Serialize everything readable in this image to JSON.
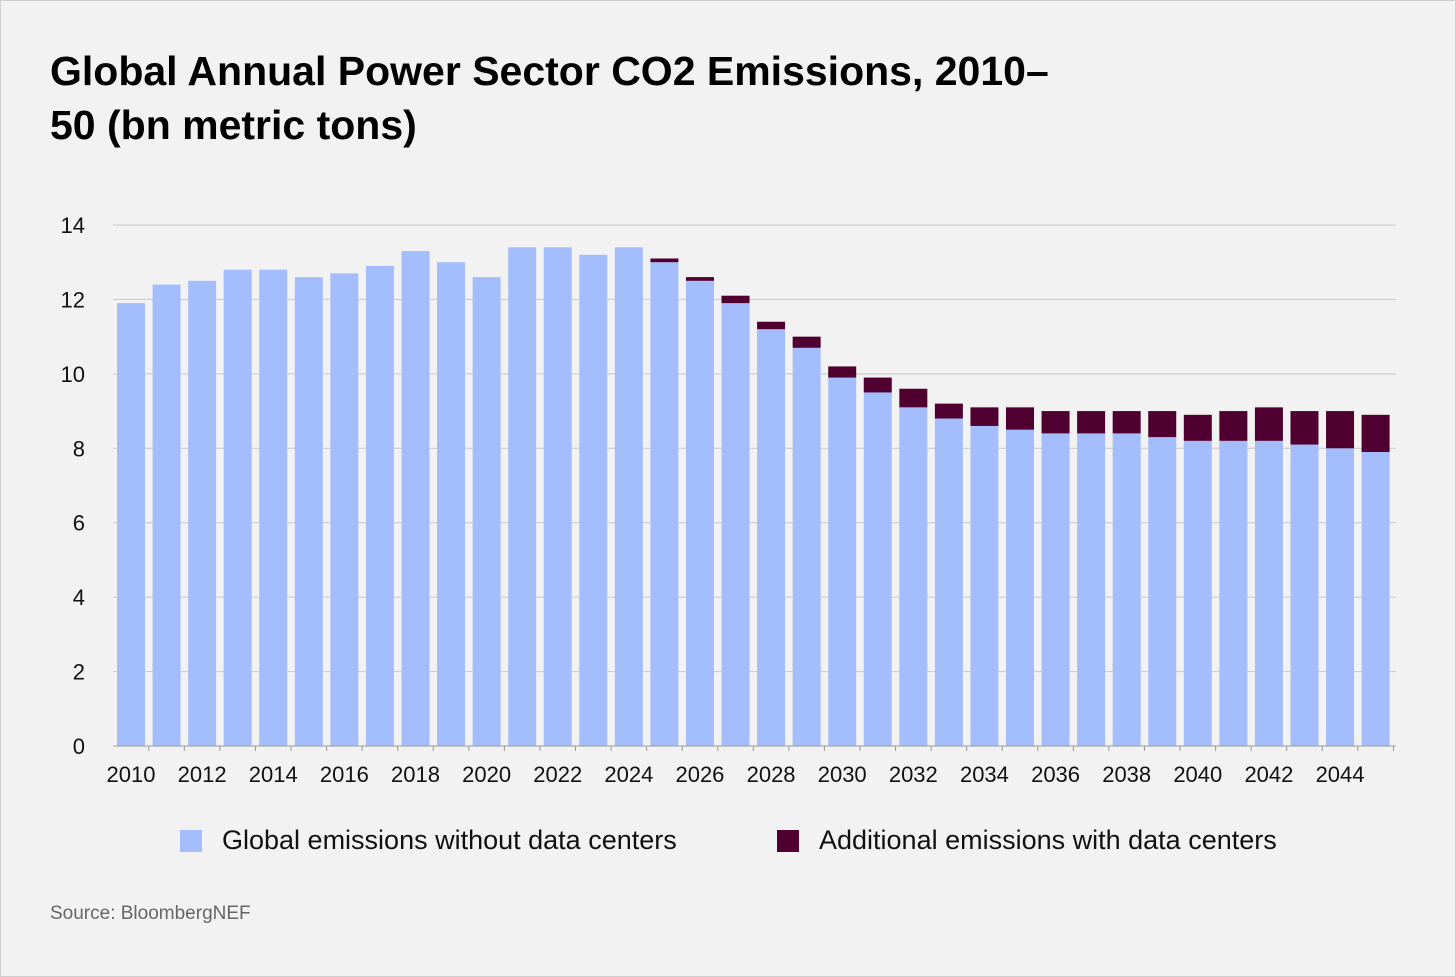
{
  "chart_data": {
    "type": "bar",
    "stacked": true,
    "title": "Global Annual Power Sector CO2 Emissions, 2010–50 (bn metric tons)",
    "source": "Source: BloombergNEF",
    "categories": [
      2010,
      2011,
      2012,
      2013,
      2014,
      2015,
      2016,
      2017,
      2018,
      2019,
      2020,
      2021,
      2022,
      2023,
      2024,
      2025,
      2026,
      2027,
      2028,
      2029,
      2030,
      2031,
      2032,
      2033,
      2034,
      2035,
      2036,
      2037,
      2038,
      2039,
      2040,
      2041,
      2042,
      2043,
      2044,
      2045
    ],
    "x_tick_labels": [
      "2010",
      "2012",
      "2014",
      "2016",
      "2018",
      "2020",
      "2022",
      "2024",
      "2026",
      "2028",
      "2030",
      "2032",
      "2034",
      "2036",
      "2038",
      "2040",
      "2042",
      "2044"
    ],
    "y_tick_labels": [
      "0",
      "2",
      "4",
      "6",
      "8",
      "10",
      "12",
      "14"
    ],
    "ylim": [
      0,
      14
    ],
    "grid": true,
    "legend_position": "bottom",
    "series": [
      {
        "name": "Global emissions without data centers",
        "color": "#a4bdfd",
        "values": [
          11.9,
          12.4,
          12.5,
          12.8,
          12.8,
          12.6,
          12.7,
          12.9,
          13.3,
          13.0,
          12.6,
          13.4,
          13.4,
          13.2,
          13.4,
          13.0,
          12.5,
          11.9,
          11.2,
          10.7,
          9.9,
          9.5,
          9.1,
          8.8,
          8.6,
          8.5,
          8.4,
          8.4,
          8.4,
          8.3,
          8.2,
          8.2,
          8.2,
          8.1,
          8.0,
          7.9
        ]
      },
      {
        "name": "Additional emissions with data centers",
        "color": "#4f0031",
        "values": [
          0,
          0,
          0,
          0,
          0,
          0,
          0,
          0,
          0,
          0,
          0,
          0,
          0,
          0,
          0,
          0.1,
          0.1,
          0.2,
          0.2,
          0.3,
          0.3,
          0.4,
          0.5,
          0.4,
          0.5,
          0.6,
          0.6,
          0.6,
          0.6,
          0.7,
          0.7,
          0.8,
          0.9,
          0.9,
          1.0,
          1.0
        ]
      }
    ]
  }
}
